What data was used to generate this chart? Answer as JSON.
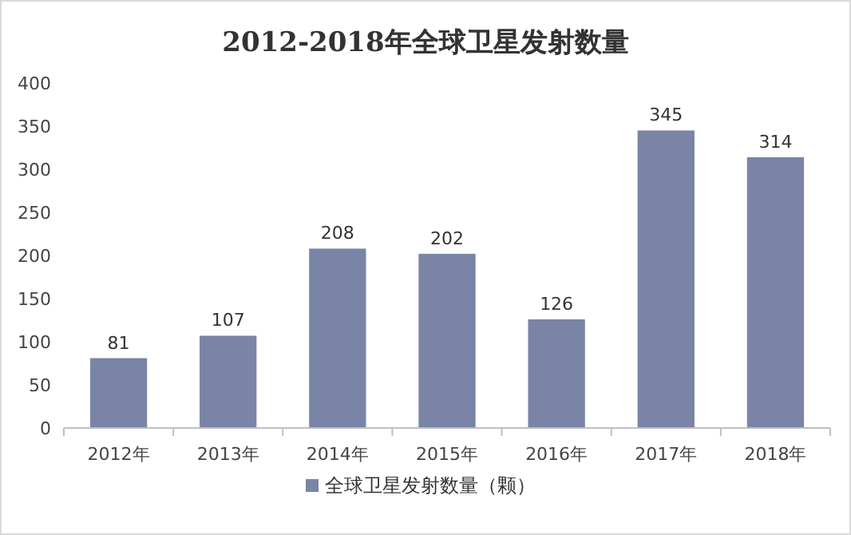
{
  "chart_data": {
    "type": "bar",
    "title": "2012-2018年全球卫星发射数量",
    "categories": [
      "2012年",
      "2013年",
      "2014年",
      "2015年",
      "2016年",
      "2017年",
      "2018年"
    ],
    "series": [
      {
        "name": "全球卫星发射数量（颗）",
        "color": "#7a84a6",
        "values": [
          81,
          107,
          208,
          202,
          126,
          345,
          314
        ]
      }
    ],
    "ylim": [
      0,
      400
    ],
    "yticks": [
      0,
      50,
      100,
      150,
      200,
      250,
      300,
      350,
      400
    ],
    "data_labels": true,
    "legend": "bottom",
    "grid": false
  }
}
